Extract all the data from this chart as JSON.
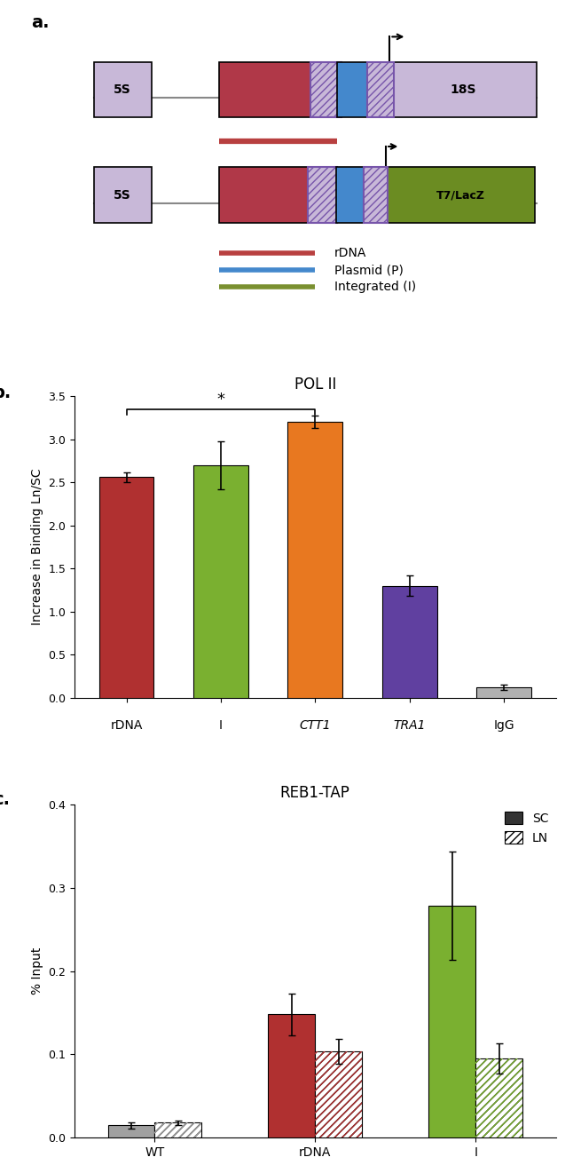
{
  "panel_a": {
    "legend": {
      "rdna_color": "#b84040",
      "plasmid_color": "#4488cc",
      "integrated_color": "#7a9030"
    }
  },
  "panel_b": {
    "title": "POL II",
    "xlabel_items": [
      "rDNA",
      "I",
      "CTT1",
      "TRA1",
      "IgG"
    ],
    "values": [
      2.56,
      2.7,
      3.2,
      1.3,
      0.12
    ],
    "errors": [
      0.06,
      0.28,
      0.07,
      0.12,
      0.03
    ],
    "colors": [
      "#b03030",
      "#7ab030",
      "#e87820",
      "#6040a0",
      "#b0b0b0"
    ],
    "ylabel": "Increase in Binding Ln/SC",
    "ylim": [
      0,
      3.5
    ],
    "yticks": [
      0,
      0.5,
      1.0,
      1.5,
      2.0,
      2.5,
      3.0,
      3.5
    ],
    "italic_labels": [
      false,
      false,
      true,
      true,
      false
    ],
    "significance_bar": {
      "from_i": 0,
      "to_i": 2,
      "y": 3.35,
      "label": "*"
    }
  },
  "panel_c": {
    "title": "REB1-TAP",
    "groups": [
      "WT",
      "rDNA",
      "I"
    ],
    "sc_values": [
      0.015,
      0.148,
      0.278
    ],
    "ln_values": [
      0.018,
      0.104,
      0.095
    ],
    "sc_errors": [
      0.004,
      0.025,
      0.065
    ],
    "ln_errors": [
      0.003,
      0.015,
      0.018
    ],
    "sc_colors": [
      "#a0a0a0",
      "#b03030",
      "#7ab030"
    ],
    "ln_colors": [
      "#d8d8d8",
      "#e08888",
      "#b8d868"
    ],
    "ylabel": "% Input",
    "ylim": [
      0,
      0.4
    ],
    "yticks": [
      0,
      0.1,
      0.2,
      0.3,
      0.4
    ],
    "legend_sc": "SC",
    "legend_ln": "LN"
  }
}
